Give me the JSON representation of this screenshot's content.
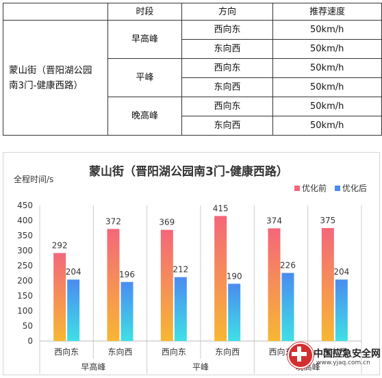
{
  "table": {
    "headers": [
      "时段",
      "方向",
      "推荐速度"
    ],
    "street": "蒙山街（晋阳湖公园南3门-健康西路）",
    "street_line1": "蒙山街（晋阳湖公园",
    "street_line2": "南3门-健康西路）",
    "periods": [
      {
        "name": "早高峰",
        "rows": [
          {
            "dir": "西向东",
            "speed": "50km/h"
          },
          {
            "dir": "东向西",
            "speed": "50km/h"
          }
        ]
      },
      {
        "name": "平峰",
        "rows": [
          {
            "dir": "西向东",
            "speed": "50km/h"
          },
          {
            "dir": "东向西",
            "speed": "50km/h"
          }
        ]
      },
      {
        "name": "晚高峰",
        "rows": [
          {
            "dir": "西向东",
            "speed": "50km/h"
          },
          {
            "dir": "东向西",
            "speed": "50km/h"
          }
        ]
      }
    ]
  },
  "chart_data": {
    "type": "bar",
    "title": "蒙山街（晋阳湖公园南3门-健康西路）",
    "ylabel": "全程时间/s",
    "xlabel": "",
    "ylim": [
      0,
      450
    ],
    "yticks": [
      0,
      50,
      100,
      150,
      200,
      250,
      300,
      350,
      400,
      450
    ],
    "groups": [
      "早高峰",
      "平峰",
      "晚高峰"
    ],
    "categories": [
      "西向东",
      "东向西",
      "西向东",
      "东向西",
      "西向东",
      "东向西"
    ],
    "series": [
      {
        "name": "优化前",
        "values": [
          292,
          372,
          369,
          415,
          374,
          375
        ],
        "color_top": "#f4677a",
        "color_bottom": "#f7b733"
      },
      {
        "name": "优化后",
        "values": [
          204,
          196,
          212,
          190,
          226,
          204
        ],
        "color_top": "#4a8cf0",
        "color_bottom": "#3fe0e6"
      }
    ],
    "legend_position": "top-right",
    "grid": false
  },
  "watermark": {
    "text": "中国应急安全网",
    "url": "www.yjaq.com.cn"
  }
}
